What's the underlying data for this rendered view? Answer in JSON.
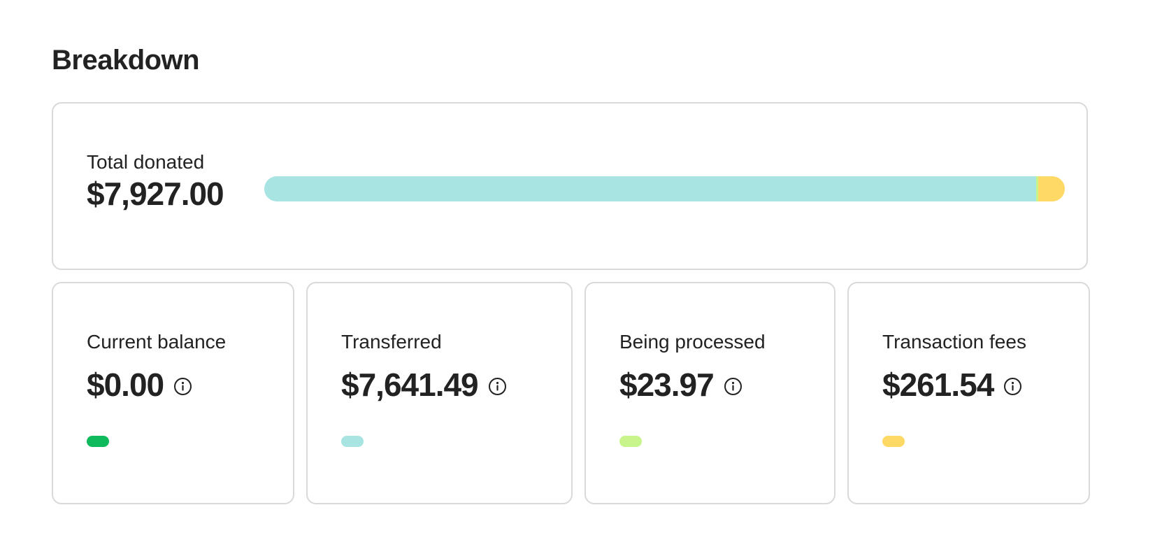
{
  "breakdown": {
    "title": "Breakdown",
    "total": {
      "label": "Total donated",
      "value": "$7,927.00"
    },
    "bar_segments": [
      {
        "key": "current_balance",
        "amount": 0.0,
        "color": "#0fba5c"
      },
      {
        "key": "transferred",
        "amount": 7641.49,
        "color": "#a8e4e2"
      },
      {
        "key": "being_processed",
        "amount": 23.97,
        "color": "#c7f58c"
      },
      {
        "key": "transaction_fees",
        "amount": 261.54,
        "color": "#ffd966"
      }
    ],
    "stats": [
      {
        "label": "Current balance",
        "value": "$0.00",
        "info_icon": "info-icon",
        "color": "#0fba5c"
      },
      {
        "label": "Transferred",
        "value": "$7,641.49",
        "info_icon": "info-icon",
        "color": "#a8e4e2"
      },
      {
        "label": "Being processed",
        "value": "$23.97",
        "info_icon": "info-icon",
        "color": "#c7f58c"
      },
      {
        "label": "Transaction fees",
        "value": "$261.54",
        "info_icon": "info-icon",
        "color": "#ffd966"
      }
    ]
  }
}
